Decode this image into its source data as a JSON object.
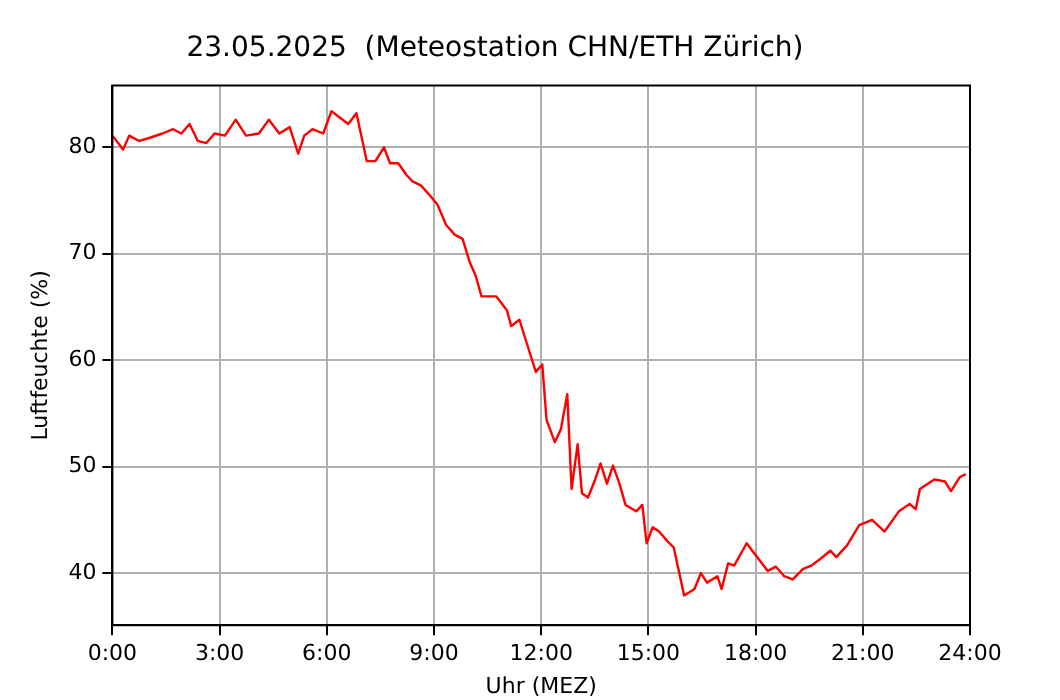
{
  "chart_data": {
    "type": "line",
    "title": "23.05.2025  (Meteostation CHN/ETH Zürich)",
    "xlabel": "Uhr (MEZ)",
    "ylabel": "Luftfeuchte (%)",
    "x": [
      0,
      0.3,
      0.47,
      0.75,
      1.05,
      1.4,
      1.7,
      1.93,
      2.16,
      2.39,
      2.63,
      2.86,
      3.15,
      3.45,
      3.74,
      4.1,
      4.38,
      4.67,
      4.96,
      5.2,
      5.37,
      5.6,
      5.9,
      6.13,
      6.36,
      6.6,
      6.83,
      7.12,
      7.36,
      7.6,
      7.77,
      8.0,
      8.23,
      8.4,
      8.64,
      8.88,
      9.1,
      9.34,
      9.58,
      9.8,
      10.0,
      10.16,
      10.33,
      10.74,
      11.04,
      11.16,
      11.39,
      11.68,
      11.85,
      12.03,
      12.15,
      12.38,
      12.55,
      12.73,
      12.85,
      13.02,
      13.14,
      13.31,
      13.49,
      13.66,
      13.84,
      14.01,
      14.19,
      14.36,
      14.66,
      14.83,
      14.95,
      15.12,
      15.3,
      15.53,
      15.71,
      16.0,
      16.29,
      16.47,
      16.64,
      16.93,
      17.05,
      17.23,
      17.4,
      17.75,
      18.04,
      18.34,
      18.57,
      18.8,
      19.04,
      19.33,
      19.56,
      19.8,
      20.09,
      20.26,
      20.56,
      20.9,
      21.26,
      21.61,
      22.01,
      22.31,
      22.48,
      22.6,
      23.0,
      23.3,
      23.47,
      23.71,
      23.88
    ],
    "series": [
      {
        "color": "#ff0000",
        "values": [
          81.1,
          79.8,
          81.1,
          80.6,
          80.9,
          81.3,
          81.7,
          81.3,
          82.2,
          80.6,
          80.4,
          81.3,
          81.1,
          82.6,
          81.1,
          81.3,
          82.6,
          81.3,
          81.9,
          79.4,
          81.1,
          81.7,
          81.3,
          83.4,
          82.8,
          82.2,
          83.2,
          78.7,
          78.7,
          80.0,
          78.5,
          78.5,
          77.4,
          76.8,
          76.4,
          75.5,
          74.6,
          72.7,
          71.8,
          71.4,
          69.2,
          68.0,
          66.0,
          66.0,
          64.7,
          63.2,
          63.8,
          60.7,
          58.9,
          59.6,
          54.4,
          52.3,
          53.5,
          56.8,
          47.9,
          52.1,
          47.5,
          47.1,
          48.6,
          50.3,
          48.4,
          50.1,
          48.4,
          46.4,
          45.8,
          46.4,
          42.8,
          44.3,
          43.9,
          43.0,
          42.4,
          37.9,
          38.5,
          40.0,
          39.1,
          39.7,
          38.5,
          40.9,
          40.7,
          42.8,
          41.5,
          40.2,
          40.6,
          39.7,
          39.4,
          40.4,
          40.7,
          41.3,
          42.1,
          41.5,
          42.6,
          44.5,
          45.0,
          43.9,
          45.8,
          46.5,
          46.0,
          47.9,
          48.8,
          48.6,
          47.7,
          49.0,
          49.3
        ]
      }
    ],
    "xlim": [
      0,
      24
    ],
    "xticks": [
      {
        "value": 0,
        "label": "0:00"
      },
      {
        "value": 3,
        "label": "3:00"
      },
      {
        "value": 6,
        "label": "6:00"
      },
      {
        "value": 9,
        "label": "9:00"
      },
      {
        "value": 12,
        "label": "12:00"
      },
      {
        "value": 15,
        "label": "15:00"
      },
      {
        "value": 18,
        "label": "18:00"
      },
      {
        "value": 21,
        "label": "21:00"
      },
      {
        "value": 24,
        "label": "24:00"
      }
    ],
    "ylim": [
      35.1,
      85.8
    ],
    "yticks": [
      40,
      50,
      60,
      70,
      80
    ],
    "grid": true,
    "marker": "none",
    "line_style": "solid"
  }
}
